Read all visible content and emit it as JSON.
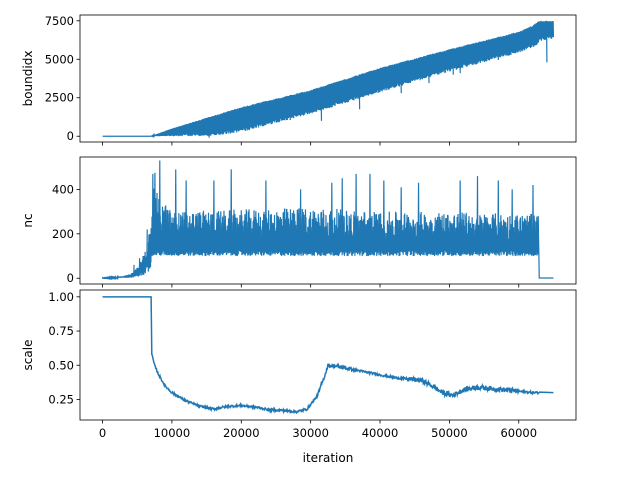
{
  "chart_data": [
    {
      "type": "line",
      "ylabel": "boundidx",
      "xlabel": "",
      "xlim": [
        -3250,
        68250
      ],
      "ylim": [
        -375,
        7875
      ],
      "yticks": [
        0,
        2500,
        5000,
        7500
      ],
      "ytick_labels": [
        "0",
        "2500",
        "5000",
        "7500"
      ],
      "grid": false,
      "color": "#1f77b4",
      "series": [
        {
          "upper": [
            [
              0,
              0
            ],
            [
              7000,
              0
            ],
            [
              10000,
              500
            ],
            [
              20000,
              1900
            ],
            [
              30000,
              3000
            ],
            [
              40000,
              4450
            ],
            [
              50000,
              5650
            ],
            [
              60000,
              6800
            ],
            [
              62000,
              7200
            ],
            [
              63000,
              7500
            ],
            [
              65000,
              7500
            ]
          ],
          "lower": [
            [
              0,
              0
            ],
            [
              7000,
              0
            ],
            [
              10000,
              0
            ],
            [
              15000,
              0
            ],
            [
              20000,
              250
            ],
            [
              30000,
              1450
            ],
            [
              40000,
              2850
            ],
            [
              50000,
              4200
            ],
            [
              60000,
              5400
            ],
            [
              62500,
              5850
            ],
            [
              63000,
              6150
            ],
            [
              65000,
              6350
            ]
          ],
          "spikes": [
            [
              15300,
              -100
            ],
            [
              17500,
              250
            ],
            [
              23000,
              650
            ],
            [
              27000,
              1050
            ],
            [
              31500,
              1000
            ],
            [
              37000,
              1750
            ],
            [
              43000,
              2800
            ],
            [
              47000,
              3450
            ],
            [
              50500,
              4000
            ],
            [
              51500,
              4100
            ],
            [
              57000,
              4950
            ],
            [
              64000,
              4800
            ]
          ]
        }
      ]
    },
    {
      "type": "line",
      "ylabel": "nc",
      "xlabel": "",
      "xlim": [
        -3250,
        68250
      ],
      "ylim": [
        -26,
        546
      ],
      "yticks": [
        0,
        200,
        400
      ],
      "ytick_labels": [
        "0",
        "200",
        "400"
      ],
      "grid": false,
      "color": "#1f77b4",
      "series": [
        {
          "phase1": [
            [
              0,
              1
            ],
            [
              1000,
              2
            ],
            [
              2000,
              4
            ],
            [
              3000,
              7
            ],
            [
              4000,
              12
            ],
            [
              4500,
              20
            ],
            [
              5000,
              30
            ],
            [
              5500,
              50
            ],
            [
              6000,
              65
            ],
            [
              6300,
              90
            ],
            [
              6600,
              120
            ],
            [
              7000,
              160
            ]
          ],
          "phase1_spikes": [
            [
              4500,
              60
            ],
            [
              5300,
              90
            ],
            [
              5800,
              100
            ],
            [
              6400,
              220
            ],
            [
              6800,
              200
            ]
          ],
          "band_low": 100,
          "band_high_typical": [
            [
              7000,
              420
            ],
            [
              10000,
              300
            ],
            [
              20000,
              310
            ],
            [
              30000,
              320
            ],
            [
              40000,
              300
            ],
            [
              50000,
              300
            ],
            [
              60000,
              290
            ],
            [
              62800,
              290
            ]
          ],
          "peaks": [
            [
              7200,
              470
            ],
            [
              7500,
              475
            ],
            [
              8200,
              530
            ],
            [
              10500,
              490
            ],
            [
              12000,
              440
            ],
            [
              16000,
              440
            ],
            [
              18500,
              490
            ],
            [
              23500,
              440
            ],
            [
              28500,
              400
            ],
            [
              33000,
              430
            ],
            [
              34500,
              450
            ],
            [
              36500,
              470
            ],
            [
              38500,
              470
            ],
            [
              40500,
              440
            ],
            [
              43000,
              410
            ],
            [
              45500,
              430
            ],
            [
              51500,
              440
            ],
            [
              54000,
              460
            ],
            [
              57000,
              440
            ],
            [
              59000,
              400
            ],
            [
              62000,
              420
            ]
          ],
          "tail": [
            [
              62900,
              100
            ],
            [
              62950,
              1
            ],
            [
              65000,
              1
            ]
          ]
        }
      ]
    },
    {
      "type": "line",
      "ylabel": "scale",
      "xlabel": "iteration",
      "xlim": [
        -3250,
        68250
      ],
      "ylim": [
        0.1,
        1.05
      ],
      "yticks": [
        0.25,
        0.5,
        0.75,
        1.0
      ],
      "ytick_labels": [
        "0.25",
        "0.50",
        "0.75",
        "1.00"
      ],
      "xticks": [
        0,
        10000,
        20000,
        30000,
        40000,
        50000,
        60000
      ],
      "xtick_labels": [
        "0",
        "10000",
        "20000",
        "30000",
        "40000",
        "50000",
        "60000"
      ],
      "grid": false,
      "color": "#1f77b4",
      "series": [
        {
          "values": [
            [
              0,
              1.0
            ],
            [
              7000,
              1.0
            ],
            [
              7100,
              0.58
            ],
            [
              7500,
              0.5
            ],
            [
              8000,
              0.44
            ],
            [
              9000,
              0.35
            ],
            [
              10000,
              0.3
            ],
            [
              11000,
              0.27
            ],
            [
              12000,
              0.24
            ],
            [
              14000,
              0.2
            ],
            [
              16000,
              0.18
            ],
            [
              18000,
              0.2
            ],
            [
              20000,
              0.205
            ],
            [
              22000,
              0.195
            ],
            [
              24000,
              0.175
            ],
            [
              26000,
              0.17
            ],
            [
              28000,
              0.16
            ],
            [
              29500,
              0.18
            ],
            [
              31000,
              0.28
            ],
            [
              32000,
              0.42
            ],
            [
              32500,
              0.5
            ],
            [
              34000,
              0.49
            ],
            [
              36000,
              0.47
            ],
            [
              38000,
              0.45
            ],
            [
              40000,
              0.43
            ],
            [
              42000,
              0.41
            ],
            [
              44000,
              0.4
            ],
            [
              46000,
              0.39
            ],
            [
              47500,
              0.35
            ],
            [
              49000,
              0.3
            ],
            [
              50500,
              0.28
            ],
            [
              52000,
              0.32
            ],
            [
              54000,
              0.34
            ],
            [
              56000,
              0.33
            ],
            [
              58000,
              0.32
            ],
            [
              60000,
              0.31
            ],
            [
              62000,
              0.3
            ],
            [
              63000,
              0.3
            ],
            [
              65000,
              0.3
            ]
          ]
        }
      ]
    }
  ]
}
